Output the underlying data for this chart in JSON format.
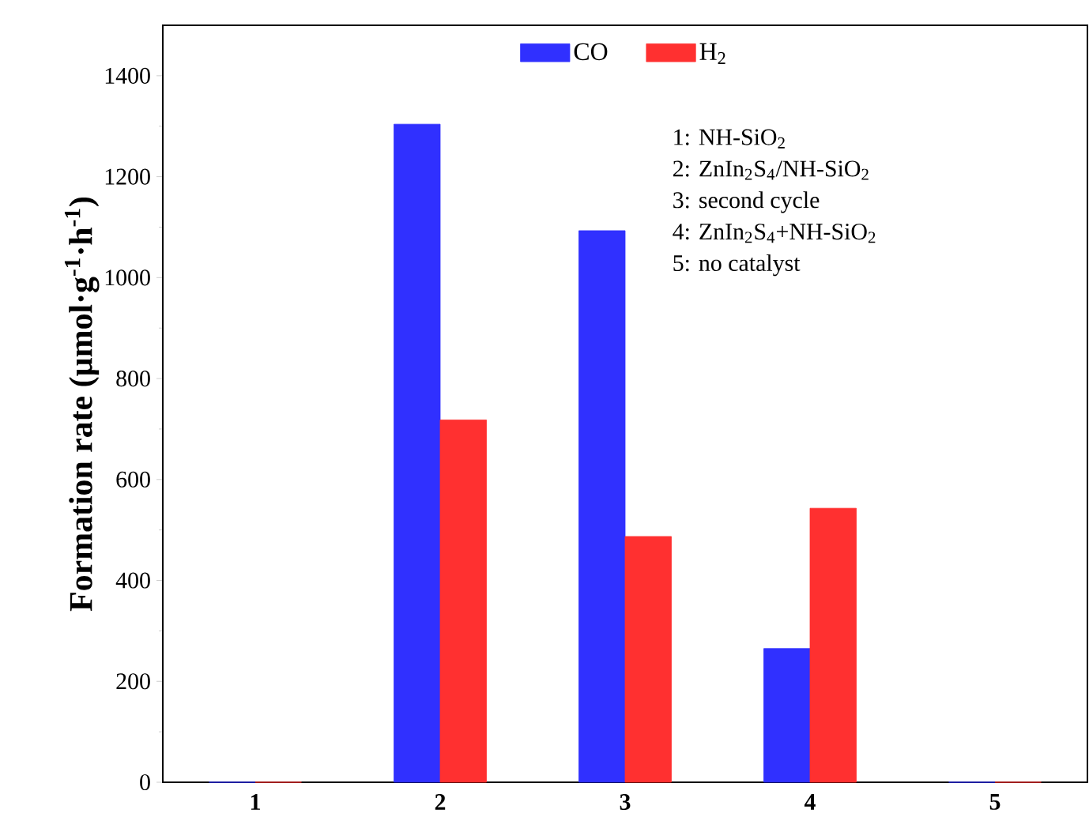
{
  "chart_data": {
    "type": "bar",
    "ylabel": "Formation rate (µmol·g$^{-1}$·h$^{-1}$)",
    "categories": [
      "1",
      "2",
      "3",
      "4",
      "5"
    ],
    "series": [
      {
        "name": "CO",
        "color": "#3030ff",
        "values": [
          0,
          1304,
          1093,
          265,
          0
        ]
      },
      {
        "name": "H$_{2}$",
        "color": "#ff3030",
        "values": [
          0,
          718,
          487,
          543,
          0
        ]
      }
    ],
    "ylim": [
      0,
      1500
    ],
    "yticks": [
      0,
      200,
      400,
      600,
      800,
      1000,
      1200,
      1400
    ],
    "legend": "top",
    "grid": false,
    "annotations": [
      "1: NH-SiO$_{2}$",
      "2: ZnIn$_{2}$S$_{4}$/NH-SiO$_{2}$",
      "3: second cycle",
      "4: ZnIn$_{2}$S$_{4}$+NH-SiO$_{2}$",
      "5: no catalyst"
    ]
  }
}
